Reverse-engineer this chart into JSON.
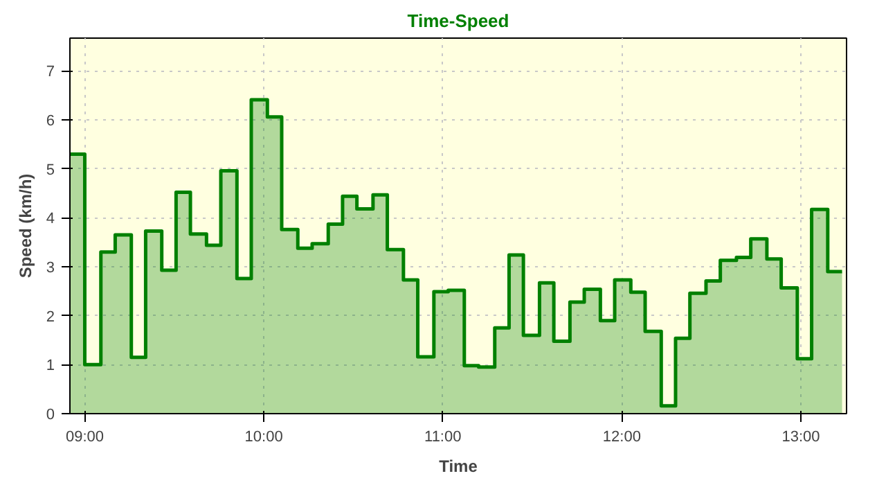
{
  "chart_data": {
    "type": "area",
    "title": "Time-Speed",
    "xlabel": "Time",
    "ylabel": "Speed (km/h)",
    "x": [
      8.92,
      9.0,
      9.0,
      9.09,
      9.09,
      9.17,
      9.17,
      9.26,
      9.26,
      9.34,
      9.34,
      9.43,
      9.43,
      9.51,
      9.51,
      9.59,
      9.59,
      9.68,
      9.68,
      9.76,
      9.76,
      9.85,
      9.85,
      9.93,
      9.93,
      10.02,
      10.02,
      10.1,
      10.1,
      10.19,
      10.19,
      10.27,
      10.27,
      10.36,
      10.36,
      10.44,
      10.44,
      10.52,
      10.52,
      10.61,
      10.61,
      10.69,
      10.69,
      10.78,
      10.78,
      10.86,
      10.86,
      10.95,
      10.95,
      11.03,
      11.03,
      11.12,
      11.12,
      11.2,
      11.2,
      11.29,
      11.29,
      11.37,
      11.37,
      11.45,
      11.45,
      11.54,
      11.54,
      11.62,
      11.62,
      11.71,
      11.71,
      11.79,
      11.79,
      11.88,
      11.88,
      11.96,
      11.96,
      12.05,
      12.05,
      12.13,
      12.13,
      12.22,
      12.22,
      12.3,
      12.3,
      12.38,
      12.38,
      12.47,
      12.47,
      12.55,
      12.55,
      12.64,
      12.64,
      12.72,
      12.72,
      12.81,
      12.81,
      12.89,
      12.89,
      12.98,
      12.98,
      13.06,
      13.06,
      13.15,
      13.15,
      13.23
    ],
    "series": [
      {
        "color": "#008000",
        "values": [
          5.3,
          5.3,
          1.0,
          1.0,
          3.3,
          3.3,
          3.65,
          3.65,
          1.15,
          1.15,
          3.73,
          3.73,
          2.93,
          2.93,
          4.52,
          4.52,
          3.67,
          3.67,
          3.44,
          3.44,
          4.96,
          4.96,
          2.76,
          2.76,
          6.41,
          6.41,
          6.06,
          6.06,
          3.76,
          3.76,
          3.38,
          3.38,
          3.47,
          3.47,
          3.87,
          3.87,
          4.44,
          4.44,
          4.18,
          4.18,
          4.47,
          4.47,
          3.35,
          3.35,
          2.73,
          2.73,
          1.16,
          1.16,
          2.49,
          2.49,
          2.52,
          2.52,
          0.98,
          0.98,
          0.95,
          0.95,
          1.75,
          1.75,
          3.24,
          3.24,
          1.6,
          1.6,
          2.67,
          2.67,
          1.48,
          1.48,
          2.28,
          2.28,
          2.54,
          2.54,
          1.9,
          1.9,
          2.73,
          2.73,
          2.48,
          2.48,
          1.68,
          1.68,
          0.16,
          0.16,
          1.54,
          1.54,
          2.46,
          2.46,
          2.71,
          2.71,
          3.13,
          3.13,
          3.19,
          3.19,
          3.57,
          3.57,
          3.16,
          3.16,
          2.57,
          2.57,
          1.12,
          1.12,
          4.17,
          4.17,
          2.9,
          2.9
        ]
      }
    ],
    "xlim": [
      8.917,
      13.255
    ],
    "ylim": [
      0,
      7.67
    ],
    "xticks": [
      {
        "value": 9,
        "label": "09:00"
      },
      {
        "value": 10,
        "label": "10:00"
      },
      {
        "value": 11,
        "label": "11:00"
      },
      {
        "value": 12,
        "label": "12:00"
      },
      {
        "value": 13,
        "label": "13:00"
      }
    ],
    "yticks": [
      0,
      1,
      2,
      3,
      4,
      5,
      6,
      7
    ],
    "grid": true,
    "line_style": "solid"
  }
}
